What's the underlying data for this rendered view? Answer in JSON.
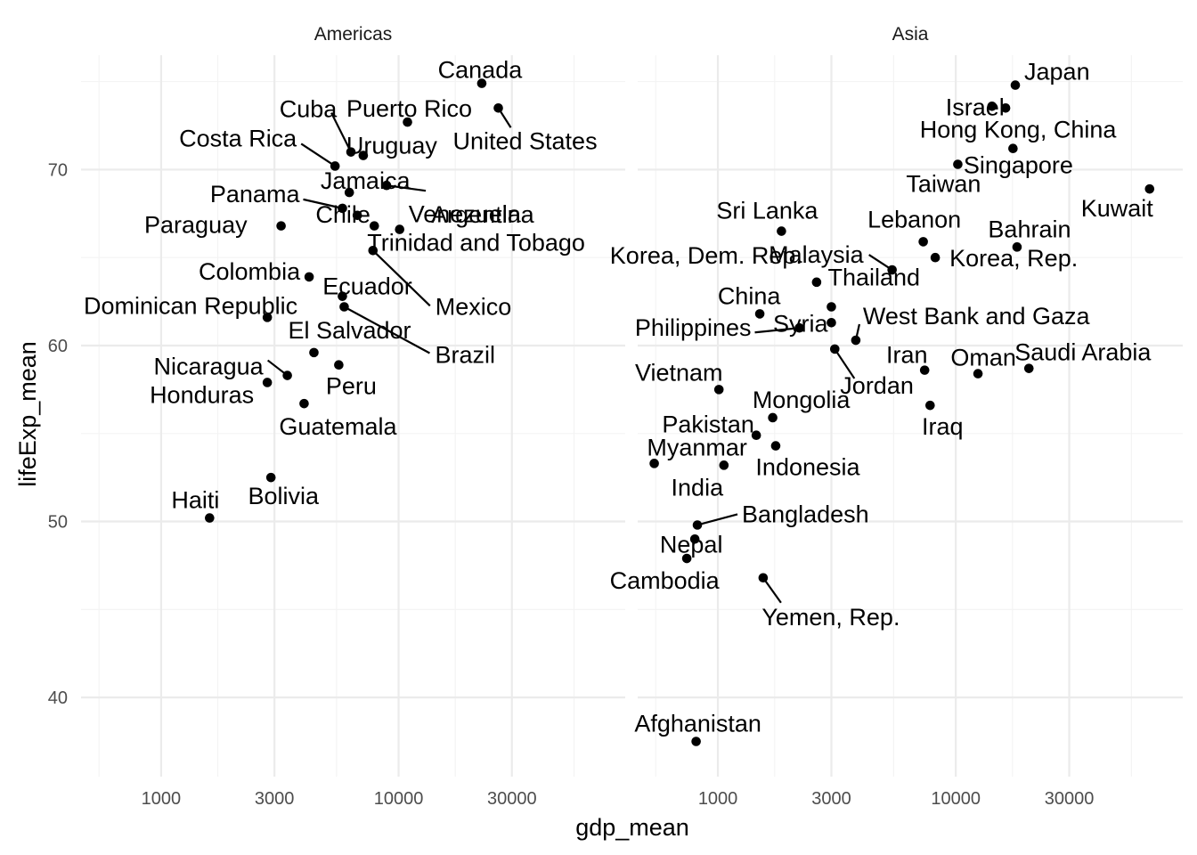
{
  "chart_data": {
    "type": "scatter",
    "x_scale": "log10",
    "xlabel": "gdp_mean",
    "ylabel": "lifeExp_mean",
    "xlim": [
      460,
      90000
    ],
    "ylim": [
      35.5,
      76.5
    ],
    "x_ticks": [
      1000,
      3000,
      10000,
      30000
    ],
    "x_tick_labels": [
      "1000",
      "3000",
      "10000",
      "30000"
    ],
    "y_ticks": [
      40,
      50,
      60,
      70
    ],
    "y_tick_labels": [
      "40",
      "50",
      "60",
      "70"
    ],
    "grid": true,
    "panels": [
      {
        "strip": "Americas",
        "points": [
          {
            "label": "Canada",
            "x": 22400,
            "y": 74.9
          },
          {
            "label": "United States",
            "x": 26300,
            "y": 73.5
          },
          {
            "label": "Puerto Rico",
            "x": 10900,
            "y": 72.7
          },
          {
            "label": "Cuba",
            "x": 6300,
            "y": 71.0
          },
          {
            "label": "Uruguay",
            "x": 7100,
            "y": 70.8
          },
          {
            "label": "Costa Rica",
            "x": 5400,
            "y": 70.2
          },
          {
            "label": "Argentina",
            "x": 8900,
            "y": 69.1
          },
          {
            "label": "Jamaica",
            "x": 6200,
            "y": 68.7
          },
          {
            "label": "Panama",
            "x": 5800,
            "y": 67.8
          },
          {
            "label": "Chile",
            "x": 6700,
            "y": 67.4
          },
          {
            "label": "Paraguay",
            "x": 3200,
            "y": 66.8
          },
          {
            "label": "Venezuela",
            "x": 10100,
            "y": 66.6
          },
          {
            "label": "Trinidad and Tobago",
            "x": 7900,
            "y": 66.8
          },
          {
            "label": "Mexico",
            "x": 7800,
            "y": 65.4
          },
          {
            "label": "Colombia",
            "x": 4200,
            "y": 63.9
          },
          {
            "label": "Ecuador",
            "x": 5800,
            "y": 62.8
          },
          {
            "label": "Brazil",
            "x": 5900,
            "y": 62.2
          },
          {
            "label": "Dominican Republic",
            "x": 2800,
            "y": 61.6
          },
          {
            "label": "El Salvador",
            "x": 4400,
            "y": 59.6
          },
          {
            "label": "Peru",
            "x": 5600,
            "y": 58.9
          },
          {
            "label": "Nicaragua",
            "x": 3400,
            "y": 58.3
          },
          {
            "label": "Honduras",
            "x": 2800,
            "y": 57.9
          },
          {
            "label": "Guatemala",
            "x": 4000,
            "y": 56.7
          },
          {
            "label": "Bolivia",
            "x": 2900,
            "y": 52.5
          },
          {
            "label": "Haiti",
            "x": 1600,
            "y": 50.2
          }
        ]
      },
      {
        "strip": "Asia",
        "points": [
          {
            "label": "Japan",
            "x": 17800,
            "y": 74.8
          },
          {
            "label": "Israel",
            "x": 14200,
            "y": 73.6
          },
          {
            "label": "Hong Kong, China",
            "x": 16200,
            "y": 73.5
          },
          {
            "label": "Singapore",
            "x": 17400,
            "y": 71.2
          },
          {
            "label": "Taiwan",
            "x": 10200,
            "y": 70.3
          },
          {
            "label": "Kuwait",
            "x": 65300,
            "y": 68.9
          },
          {
            "label": "Sri Lanka",
            "x": 1850,
            "y": 66.5
          },
          {
            "label": "Lebanon",
            "x": 7300,
            "y": 65.9
          },
          {
            "label": "Bahrain",
            "x": 18100,
            "y": 65.6
          },
          {
            "label": "Korea, Dem. Rep.",
            "x": 2600,
            "y": 63.6
          },
          {
            "label": "Malaysia",
            "x": 5400,
            "y": 64.3
          },
          {
            "label": "Korea, Rep.",
            "x": 8200,
            "y": 65.0
          },
          {
            "label": "Thailand",
            "x": 3000,
            "y": 62.2
          },
          {
            "label": "China",
            "x": 1500,
            "y": 61.8
          },
          {
            "label": "West Bank and Gaza",
            "x": 3800,
            "y": 60.3
          },
          {
            "label": "Philippines",
            "x": 2200,
            "y": 61.0
          },
          {
            "label": "Syria",
            "x": 3000,
            "y": 61.3
          },
          {
            "label": "Jordan",
            "x": 3100,
            "y": 59.8
          },
          {
            "label": "Iran",
            "x": 7400,
            "y": 58.6
          },
          {
            "label": "Oman",
            "x": 12400,
            "y": 58.4
          },
          {
            "label": "Saudi Arabia",
            "x": 20300,
            "y": 58.7
          },
          {
            "label": "Vietnam",
            "x": 1010,
            "y": 57.5
          },
          {
            "label": "Iraq",
            "x": 7800,
            "y": 56.6
          },
          {
            "label": "Mongolia",
            "x": 1700,
            "y": 55.9
          },
          {
            "label": "Pakistan",
            "x": 1450,
            "y": 54.9
          },
          {
            "label": "Indonesia",
            "x": 1750,
            "y": 54.3
          },
          {
            "label": "Myanmar",
            "x": 540,
            "y": 53.3
          },
          {
            "label": "India",
            "x": 1060,
            "y": 53.2
          },
          {
            "label": "Bangladesh",
            "x": 820,
            "y": 49.8
          },
          {
            "label": "Nepal",
            "x": 800,
            "y": 49.0
          },
          {
            "label": "Cambodia",
            "x": 740,
            "y": 47.9
          },
          {
            "label": "Yemen, Rep.",
            "x": 1550,
            "y": 46.8
          },
          {
            "label": "Afghanistan",
            "x": 810,
            "y": 37.5
          }
        ]
      }
    ]
  }
}
